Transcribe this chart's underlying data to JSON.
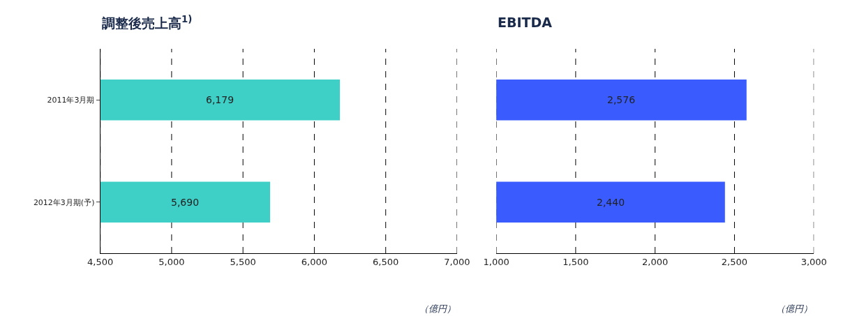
{
  "chart_data": [
    {
      "type": "bar",
      "orientation": "horizontal",
      "title": "調整後売上高$^{1)}$",
      "categories": [
        "2011年3月期",
        "2012年3月期(予)"
      ],
      "values": [
        6179,
        5690
      ],
      "value_labels": [
        "6,179",
        "5,690"
      ],
      "color": "#3ecfc6",
      "xlim": [
        4500,
        7000
      ],
      "xticks": [
        {
          "value": 4500,
          "label": "4,500"
        },
        {
          "value": 5000,
          "label": "5,000"
        },
        {
          "value": 5500,
          "label": "5,500"
        },
        {
          "value": 6000,
          "label": "6,000"
        },
        {
          "value": 6500,
          "label": "6,500"
        },
        {
          "value": 7000,
          "label": "7,000"
        }
      ],
      "grid": "x",
      "annotations": [
        "（億円）"
      ]
    },
    {
      "type": "bar",
      "orientation": "horizontal",
      "title": "EBITDA",
      "categories": [
        null,
        null
      ],
      "values": [
        2576,
        2440
      ],
      "value_labels": [
        "2,576",
        "2,440"
      ],
      "color": "#3a5cff",
      "xlim": [
        1000,
        3000
      ],
      "xticks": [
        {
          "value": 1000,
          "label": "1,000"
        },
        {
          "value": 1500,
          "label": "1,500"
        },
        {
          "value": 2000,
          "label": "2,000"
        },
        {
          "value": 2500,
          "label": "2,500"
        },
        {
          "value": 3000,
          "label": "3,000"
        }
      ],
      "grid": "x",
      "tick_labels": "x",
      "annotations": [
        "（億円）"
      ]
    }
  ]
}
